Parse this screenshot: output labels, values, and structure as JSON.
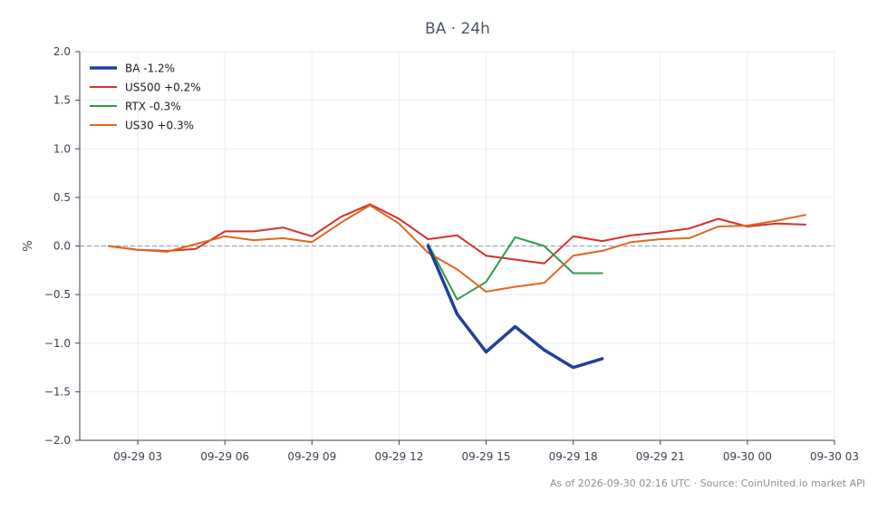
{
  "chart_data": {
    "type": "line",
    "title": "BA · 24h",
    "ylabel": "%",
    "xlabel": "",
    "ylim": [
      -2.0,
      2.0
    ],
    "yticks": [
      -2.0,
      -1.5,
      -1.0,
      -0.5,
      0.0,
      0.5,
      1.0,
      1.5,
      2.0
    ],
    "ytick_labels": [
      "−2.0",
      "−1.5",
      "−1.0",
      "−0.5",
      "0.0",
      "0.5",
      "1.0",
      "1.5",
      "2.0"
    ],
    "xlim": [
      "2026-09-29 01:00",
      "2026-09-30 03:00"
    ],
    "xticks": [
      "2026-09-29 03:00",
      "2026-09-29 06:00",
      "2026-09-29 09:00",
      "2026-09-29 12:00",
      "2026-09-29 15:00",
      "2026-09-29 18:00",
      "2026-09-29 21:00",
      "2026-09-30 00:00",
      "2026-09-30 03:00"
    ],
    "xtick_labels": [
      "09-29 03",
      "09-29 06",
      "09-29 09",
      "09-29 12",
      "09-29 15",
      "09-29 18",
      "09-29 21",
      "09-30 00",
      "09-30 03"
    ],
    "grid": true,
    "zero_line": true,
    "legend_position": "top-left",
    "footer": "As of 2026-09-30 02:16 UTC · Source: CoinUnited.io market API",
    "series": [
      {
        "name": "BA -1.2%",
        "color": "#1f3f9e",
        "emphasis": true,
        "x": [
          "2026-09-29 13:00",
          "2026-09-29 14:00",
          "2026-09-29 15:00",
          "2026-09-29 16:00",
          "2026-09-29 17:00",
          "2026-09-29 18:00",
          "2026-09-29 19:00"
        ],
        "y": [
          0.0,
          -0.7,
          -1.09,
          -0.83,
          -1.07,
          -1.25,
          -1.16
        ]
      },
      {
        "name": "US500 +0.2%",
        "color": "#d62f2f",
        "x": [
          "2026-09-29 02:00",
          "2026-09-29 03:00",
          "2026-09-29 04:00",
          "2026-09-29 05:00",
          "2026-09-29 06:00",
          "2026-09-29 07:00",
          "2026-09-29 08:00",
          "2026-09-29 09:00",
          "2026-09-29 10:00",
          "2026-09-29 11:00",
          "2026-09-29 12:00",
          "2026-09-29 13:00",
          "2026-09-29 14:00",
          "2026-09-29 15:00",
          "2026-09-29 16:00",
          "2026-09-29 17:00",
          "2026-09-29 18:00",
          "2026-09-29 19:00",
          "2026-09-29 20:00",
          "2026-09-29 21:00",
          "2026-09-29 22:00",
          "2026-09-29 23:00",
          "2026-09-30 00:00",
          "2026-09-30 01:00",
          "2026-09-30 02:00"
        ],
        "y": [
          0.0,
          -0.04,
          -0.05,
          -0.03,
          0.15,
          0.15,
          0.19,
          0.1,
          0.3,
          0.43,
          0.28,
          0.07,
          0.11,
          -0.1,
          -0.14,
          -0.18,
          0.1,
          0.05,
          0.11,
          0.14,
          0.18,
          0.28,
          0.2,
          0.23,
          0.22
        ]
      },
      {
        "name": "RTX -0.3%",
        "color": "#2e9b4a",
        "x": [
          "2026-09-29 13:00",
          "2026-09-29 14:00",
          "2026-09-29 15:00",
          "2026-09-29 16:00",
          "2026-09-29 17:00",
          "2026-09-29 18:00",
          "2026-09-29 19:00"
        ],
        "y": [
          0.02,
          -0.55,
          -0.37,
          0.09,
          0.0,
          -0.28,
          -0.28
        ]
      },
      {
        "name": "US30 +0.3%",
        "color": "#e2651c",
        "x": [
          "2026-09-29 02:00",
          "2026-09-29 03:00",
          "2026-09-29 04:00",
          "2026-09-29 05:00",
          "2026-09-29 06:00",
          "2026-09-29 07:00",
          "2026-09-29 08:00",
          "2026-09-29 09:00",
          "2026-09-29 10:00",
          "2026-09-29 11:00",
          "2026-09-29 12:00",
          "2026-09-29 13:00",
          "2026-09-29 14:00",
          "2026-09-29 15:00",
          "2026-09-29 16:00",
          "2026-09-29 17:00",
          "2026-09-29 18:00",
          "2026-09-29 19:00",
          "2026-09-29 20:00",
          "2026-09-29 21:00",
          "2026-09-29 22:00",
          "2026-09-29 23:00",
          "2026-09-30 00:00",
          "2026-09-30 01:00",
          "2026-09-30 02:00"
        ],
        "y": [
          0.0,
          -0.04,
          -0.06,
          0.02,
          0.1,
          0.06,
          0.08,
          0.04,
          0.24,
          0.42,
          0.23,
          -0.07,
          -0.24,
          -0.47,
          -0.42,
          -0.38,
          -0.1,
          -0.05,
          0.04,
          0.07,
          0.08,
          0.2,
          0.21,
          0.26,
          0.32
        ]
      }
    ]
  }
}
